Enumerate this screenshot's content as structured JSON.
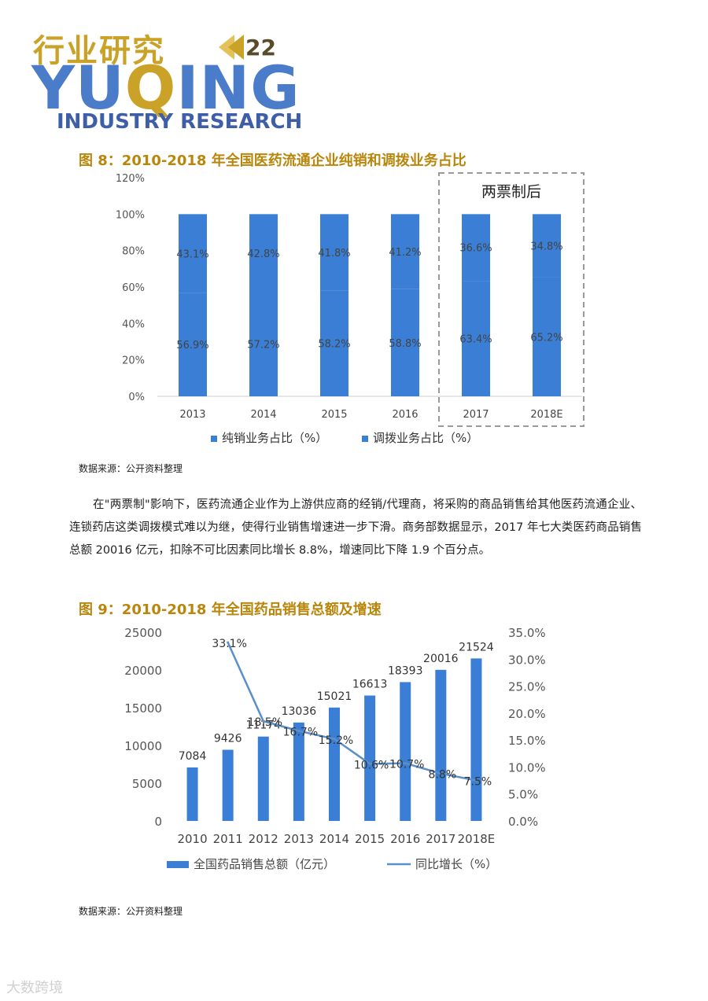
{
  "header": {
    "title": "行业研究",
    "page_number": "22",
    "brand": "YUQING",
    "subtitle": "INDUSTRY RESEARCH"
  },
  "figure8": {
    "title": "图 8：2010-2018 年全国医药流通企业纯销和调拨业务占比",
    "annotation": "两票制后",
    "source": "数据来源：公开资料整理",
    "chart_data": {
      "type": "bar",
      "stacked": true,
      "categories": [
        "2013",
        "2014",
        "2015",
        "2016",
        "2017",
        "2018E"
      ],
      "series": [
        {
          "name": "纯销业务占比（%）",
          "values": [
            56.9,
            57.2,
            58.2,
            58.8,
            63.4,
            65.2
          ],
          "labels": [
            "56.9%",
            "57.2%",
            "58.2%",
            "58.8%",
            "63.4%",
            "65.2%"
          ],
          "color": "#3a7fd5"
        },
        {
          "name": "调拨业务占比（%）",
          "values": [
            43.1,
            42.8,
            41.8,
            41.2,
            36.6,
            34.8
          ],
          "labels": [
            "43.1%",
            "42.8%",
            "41.8%",
            "41.2%",
            "36.6%",
            "34.8%"
          ],
          "color": "#3a7fd5"
        }
      ],
      "y_ticks": [
        "0%",
        "20%",
        "40%",
        "60%",
        "80%",
        "100%",
        "120%"
      ],
      "ylim": [
        0,
        120
      ],
      "highlight_categories": [
        "2017",
        "2018E"
      ],
      "legend": "bottom"
    }
  },
  "paragraph": "在\"两票制\"影响下，医药流通企业作为上游供应商的经销/代理商，将采购的商品销售给其他医药流通企业、连锁药店这类调拨模式难以为继，使得行业销售增速进一步下滑。商务部数据显示，2017 年七大类医药商品销售总额 20016 亿元，扣除不可比因素同比增长 8.8%，增速同比下降 1.9 个百分点。",
  "figure9": {
    "title": "图 9：2010-2018 年全国药品销售总额及增速",
    "source": "数据来源：公开资料整理",
    "chart_data": {
      "type": "bar",
      "categories": [
        "2010",
        "2011",
        "2012",
        "2013",
        "2014",
        "2015",
        "2016",
        "2017",
        "2018E"
      ],
      "series": [
        {
          "name": "全国药品销售总额（亿元）",
          "type": "bar",
          "values": [
            7084,
            9426,
            11174,
            13036,
            15021,
            16613,
            18393,
            20016,
            21524
          ],
          "labels": [
            "7084",
            "9426",
            "11174",
            "13036",
            "15021",
            "16613",
            "18393",
            "20016",
            "21524"
          ],
          "color": "#3a7fd5"
        },
        {
          "name": "同比增长（%）",
          "type": "line",
          "values": [
            null,
            33.1,
            18.5,
            16.7,
            15.2,
            10.6,
            10.7,
            8.8,
            7.5
          ],
          "labels": [
            "",
            "33.1%",
            "18.5%",
            "16.7%",
            "15.2%",
            "10.6%",
            "10.7%",
            "8.8%",
            "7.5%"
          ],
          "color": "#5b8fc9"
        }
      ],
      "y_left_ticks": [
        "0",
        "5000",
        "10000",
        "15000",
        "20000",
        "25000"
      ],
      "y_left_lim": [
        0,
        25000
      ],
      "y_right_ticks": [
        "0.0%",
        "5.0%",
        "10.0%",
        "15.0%",
        "20.0%",
        "25.0%",
        "30.0%",
        "35.0%"
      ],
      "y_right_lim": [
        0,
        35
      ],
      "legend": "bottom"
    }
  },
  "watermark": "大数跨境"
}
